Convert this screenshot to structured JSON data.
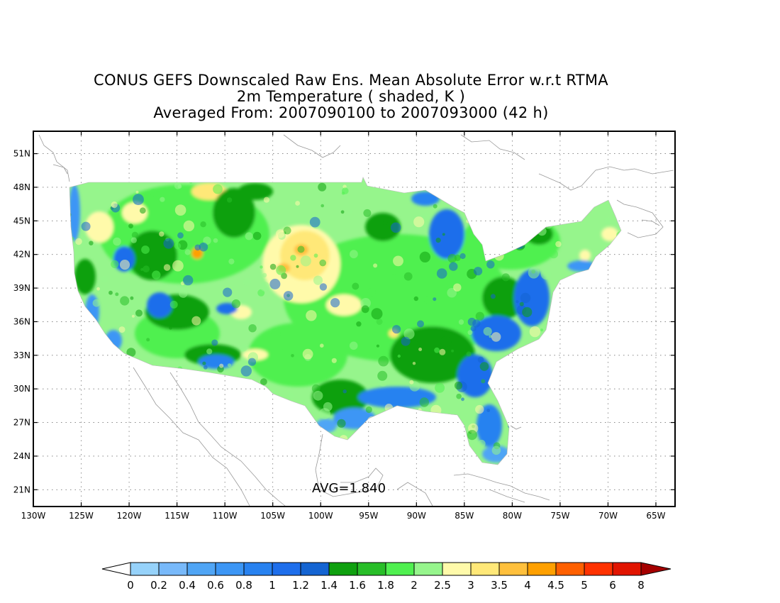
{
  "title": {
    "line1": "CONUS GEFS Downscaled Raw Ens. Mean Absolute Error w.r.t RTMA",
    "line2": "2m Temperature ( shaded, K )",
    "line3": "Averaged From: 2007090100 to 2007093000 (42 h)"
  },
  "annotation": "AVG=1.840",
  "map": {
    "lon_range": [
      -130,
      -63
    ],
    "lat_range": [
      19.5,
      53
    ],
    "x_ticks": [
      {
        "lon": -130,
        "label": "130W"
      },
      {
        "lon": -125,
        "label": "125W"
      },
      {
        "lon": -120,
        "label": "120W"
      },
      {
        "lon": -115,
        "label": "115W"
      },
      {
        "lon": -110,
        "label": "110W"
      },
      {
        "lon": -105,
        "label": "105W"
      },
      {
        "lon": -100,
        "label": "100W"
      },
      {
        "lon": -95,
        "label": "95W"
      },
      {
        "lon": -90,
        "label": "90W"
      },
      {
        "lon": -85,
        "label": "85W"
      },
      {
        "lon": -80,
        "label": "80W"
      },
      {
        "lon": -75,
        "label": "75W"
      },
      {
        "lon": -70,
        "label": "70W"
      },
      {
        "lon": -65,
        "label": "65W"
      }
    ],
    "y_ticks": [
      {
        "lat": 21,
        "label": "21N"
      },
      {
        "lat": 24,
        "label": "24N"
      },
      {
        "lat": 27,
        "label": "27N"
      },
      {
        "lat": 30,
        "label": "30N"
      },
      {
        "lat": 33,
        "label": "33N"
      },
      {
        "lat": 36,
        "label": "36N"
      },
      {
        "lat": 39,
        "label": "39N"
      },
      {
        "lat": 42,
        "label": "42N"
      },
      {
        "lat": 45,
        "label": "45N"
      },
      {
        "lat": 48,
        "label": "48N"
      },
      {
        "lat": 51,
        "label": "51N"
      }
    ],
    "grid": "dotted"
  },
  "colorbar": {
    "boundaries": [
      "0",
      "0.2",
      "0.4",
      "0.6",
      "0.8",
      "1",
      "1.2",
      "1.4",
      "1.6",
      "1.8",
      "2",
      "2.5",
      "3",
      "3.5",
      "4",
      "4.5",
      "5",
      "6",
      "8"
    ],
    "colors": [
      "#96d2fa",
      "#78b9fa",
      "#50a5f5",
      "#3c96f5",
      "#2882f0",
      "#1e6eeb",
      "#1464d2",
      "#0fa00f",
      "#28be28",
      "#50f050",
      "#96f58c",
      "#fffaaa",
      "#ffe878",
      "#ffc03c",
      "#ffa000",
      "#ff6000",
      "#ff3200",
      "#e11400"
    ],
    "under_color": "#ffffff",
    "over_color": "#a50000"
  }
}
